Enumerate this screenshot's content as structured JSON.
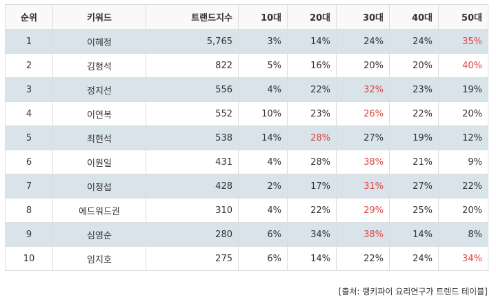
{
  "table": {
    "headers": [
      "순위",
      "키워드",
      "트랜드지수",
      "10대",
      "20대",
      "30대",
      "40대",
      "50대"
    ],
    "rows": [
      {
        "rank": "1",
        "keyword": "이혜정",
        "index": "5,765",
        "a10": "3%",
        "a20": "14%",
        "a30": "24%",
        "a40": "24%",
        "a50": "35%",
        "highlight": "a50"
      },
      {
        "rank": "2",
        "keyword": "김형석",
        "index": "822",
        "a10": "5%",
        "a20": "16%",
        "a30": "20%",
        "a40": "20%",
        "a50": "40%",
        "highlight": "a50"
      },
      {
        "rank": "3",
        "keyword": "정지선",
        "index": "556",
        "a10": "4%",
        "a20": "22%",
        "a30": "32%",
        "a40": "23%",
        "a50": "19%",
        "highlight": "a30"
      },
      {
        "rank": "4",
        "keyword": "이연복",
        "index": "552",
        "a10": "10%",
        "a20": "23%",
        "a30": "26%",
        "a40": "22%",
        "a50": "20%",
        "highlight": "a30"
      },
      {
        "rank": "5",
        "keyword": "최현석",
        "index": "538",
        "a10": "14%",
        "a20": "28%",
        "a30": "27%",
        "a40": "19%",
        "a50": "12%",
        "highlight": "a20"
      },
      {
        "rank": "6",
        "keyword": "이원일",
        "index": "431",
        "a10": "4%",
        "a20": "28%",
        "a30": "38%",
        "a40": "21%",
        "a50": "9%",
        "highlight": "a30"
      },
      {
        "rank": "7",
        "keyword": "이정섭",
        "index": "428",
        "a10": "2%",
        "a20": "17%",
        "a30": "31%",
        "a40": "27%",
        "a50": "22%",
        "highlight": "a30"
      },
      {
        "rank": "8",
        "keyword": "에드워드권",
        "index": "310",
        "a10": "4%",
        "a20": "22%",
        "a30": "29%",
        "a40": "25%",
        "a50": "20%",
        "highlight": "a30"
      },
      {
        "rank": "9",
        "keyword": "심영순",
        "index": "280",
        "a10": "6%",
        "a20": "34%",
        "a30": "38%",
        "a40": "14%",
        "a50": "8%",
        "highlight": "a30"
      },
      {
        "rank": "10",
        "keyword": "임지호",
        "index": "275",
        "a10": "6%",
        "a20": "14%",
        "a30": "22%",
        "a40": "24%",
        "a50": "34%",
        "highlight": "a50"
      }
    ]
  },
  "source": "[출처: 랭키파이 요리연구가 트렌드 테이블]",
  "colors": {
    "highlight": "#e0443f",
    "row_alt": "#d9e3ea",
    "border": "#dddddd"
  }
}
